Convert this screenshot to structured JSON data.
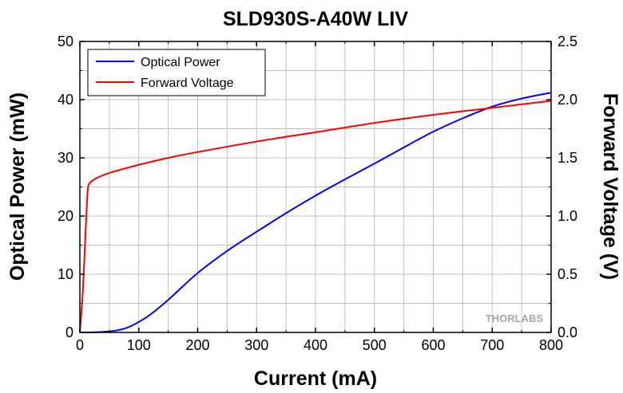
{
  "chart_data": {
    "type": "line",
    "title": "SLD930S-A40W LIV",
    "xlabel": "Current (mA)",
    "ylabel": "Optical Power (mW)",
    "y2label": "Forward Voltage (V)",
    "xlim": [
      0,
      800
    ],
    "ylim": [
      0,
      50
    ],
    "y2lim": [
      0,
      2.5
    ],
    "xticks": [
      "0",
      "100",
      "200",
      "300",
      "400",
      "500",
      "600",
      "700",
      "800"
    ],
    "yticks": [
      "0",
      "10",
      "20",
      "30",
      "40",
      "50"
    ],
    "y2ticks": [
      "0.0",
      "0.5",
      "1.0",
      "1.5",
      "2.0",
      "2.5"
    ],
    "grid": true,
    "legend_position": "top-left",
    "watermark": "THORLABS",
    "series": [
      {
        "name": "Optical Power",
        "axis": "left",
        "color": "#0000ff",
        "x": [
          0,
          20,
          40,
          60,
          80,
          100,
          120,
          150,
          200,
          250,
          300,
          350,
          400,
          450,
          500,
          550,
          600,
          650,
          700,
          750,
          800
        ],
        "y": [
          0,
          0.02,
          0.1,
          0.3,
          0.8,
          1.8,
          3.1,
          5.6,
          10.2,
          14.0,
          17.3,
          20.5,
          23.5,
          26.3,
          29.0,
          31.8,
          34.5,
          36.8,
          38.8,
          40.2,
          41.2
        ]
      },
      {
        "name": "Forward Voltage",
        "axis": "right",
        "color": "#ff0000",
        "x": [
          0,
          5,
          10,
          13,
          15,
          20,
          30,
          50,
          100,
          150,
          200,
          300,
          400,
          500,
          600,
          700,
          800
        ],
        "y": [
          0,
          0.35,
          0.9,
          1.2,
          1.27,
          1.3,
          1.33,
          1.37,
          1.44,
          1.5,
          1.55,
          1.64,
          1.72,
          1.8,
          1.87,
          1.93,
          1.99
        ]
      }
    ]
  }
}
